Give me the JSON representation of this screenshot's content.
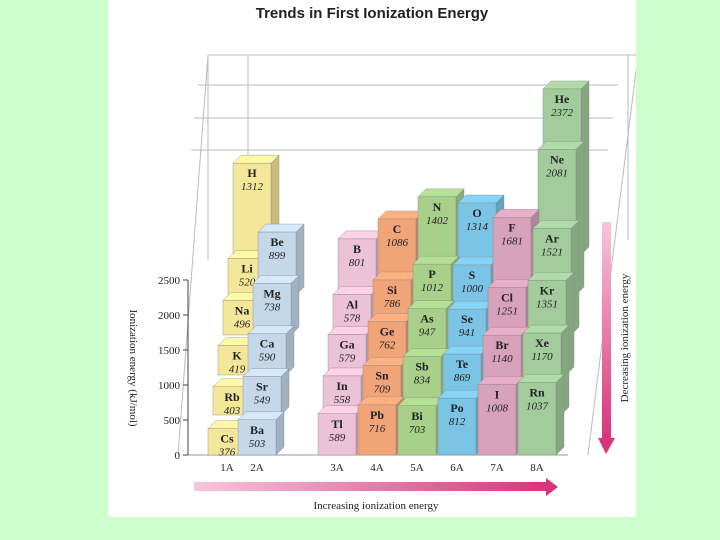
{
  "chart_data": {
    "type": "bar",
    "title": "Trends in First Ionization Energy",
    "ylabel": "Ionization energy (kJ/mol)",
    "ylim": [
      0,
      2500
    ],
    "yticks": [
      0,
      500,
      1000,
      1500,
      2000,
      2500
    ],
    "xlabel": "Increasing ionization energy",
    "side_label": "Decreasing ionization energy",
    "groups": [
      {
        "label": "1A",
        "color": "#f5e79a",
        "elements": [
          {
            "symbol": "H",
            "value": 1312
          },
          {
            "symbol": "Li",
            "value": 520
          },
          {
            "symbol": "Na",
            "value": 496
          },
          {
            "symbol": "K",
            "value": 419
          },
          {
            "symbol": "Rb",
            "value": 403
          },
          {
            "symbol": "Cs",
            "value": 376
          }
        ]
      },
      {
        "label": "2A",
        "color": "#c4d8ea",
        "elements": [
          {
            "symbol": "Be",
            "value": 899
          },
          {
            "symbol": "Mg",
            "value": 738
          },
          {
            "symbol": "Ca",
            "value": 590
          },
          {
            "symbol": "Sr",
            "value": 549
          },
          {
            "symbol": "Ba",
            "value": 503
          }
        ]
      },
      {
        "label": "3A",
        "color": "#ecc2d6",
        "elements": [
          {
            "symbol": "B",
            "value": 801
          },
          {
            "symbol": "Al",
            "value": 578
          },
          {
            "symbol": "Ga",
            "value": 579
          },
          {
            "symbol": "In",
            "value": 558
          },
          {
            "symbol": "Tl",
            "value": 589
          }
        ]
      },
      {
        "label": "4A",
        "color": "#f0a478",
        "elements": [
          {
            "symbol": "C",
            "value": 1086
          },
          {
            "symbol": "Si",
            "value": 786
          },
          {
            "symbol": "Ge",
            "value": 762
          },
          {
            "symbol": "Sn",
            "value": 709
          },
          {
            "symbol": "Pb",
            "value": 716
          }
        ]
      },
      {
        "label": "5A",
        "color": "#a8d08a",
        "elements": [
          {
            "symbol": "N",
            "value": 1402
          },
          {
            "symbol": "P",
            "value": 1012
          },
          {
            "symbol": "As",
            "value": 947
          },
          {
            "symbol": "Sb",
            "value": 834
          },
          {
            "symbol": "Bi",
            "value": 703
          }
        ]
      },
      {
        "label": "6A",
        "color": "#7cc4e6",
        "elements": [
          {
            "symbol": "O",
            "value": 1314
          },
          {
            "symbol": "S",
            "value": 1000
          },
          {
            "symbol": "Se",
            "value": 941
          },
          {
            "symbol": "Te",
            "value": 869
          },
          {
            "symbol": "Po",
            "value": 812
          }
        ]
      },
      {
        "label": "7A",
        "color": "#d8a2ba",
        "elements": [
          {
            "symbol": "F",
            "value": 1681
          },
          {
            "symbol": "Cl",
            "value": 1251
          },
          {
            "symbol": "Br",
            "value": 1140
          },
          {
            "symbol": "I",
            "value": 1008
          }
        ]
      },
      {
        "label": "8A",
        "color": "#a2cc9c",
        "elements": [
          {
            "symbol": "He",
            "value": 2372
          },
          {
            "symbol": "Ne",
            "value": 2081
          },
          {
            "symbol": "Ar",
            "value": 1521
          },
          {
            "symbol": "Kr",
            "value": 1351
          },
          {
            "symbol": "Xe",
            "value": 1170
          },
          {
            "symbol": "Rn",
            "value": 1037
          }
        ]
      }
    ]
  },
  "colors": {
    "background": "#ccffcc",
    "arrow": "#d8347a"
  }
}
